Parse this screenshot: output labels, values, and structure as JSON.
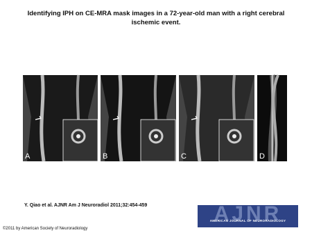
{
  "title": "Identifying IPH on CE-MRA mask images in a 72-year-old man with a right cerebral ischemic event.",
  "panels": [
    {
      "label": "A"
    },
    {
      "label": "B"
    },
    {
      "label": "C"
    },
    {
      "label": "D"
    }
  ],
  "citation": "Y. Qiao et al. AJNR Am J Neuroradiol 2011;32:454-459",
  "logo": {
    "name": "AJNR",
    "subtitle": "AMERICAN JOURNAL OF NEURORADIOLOGY"
  },
  "copyright": "©2011 by American Society of Neuroradiology"
}
